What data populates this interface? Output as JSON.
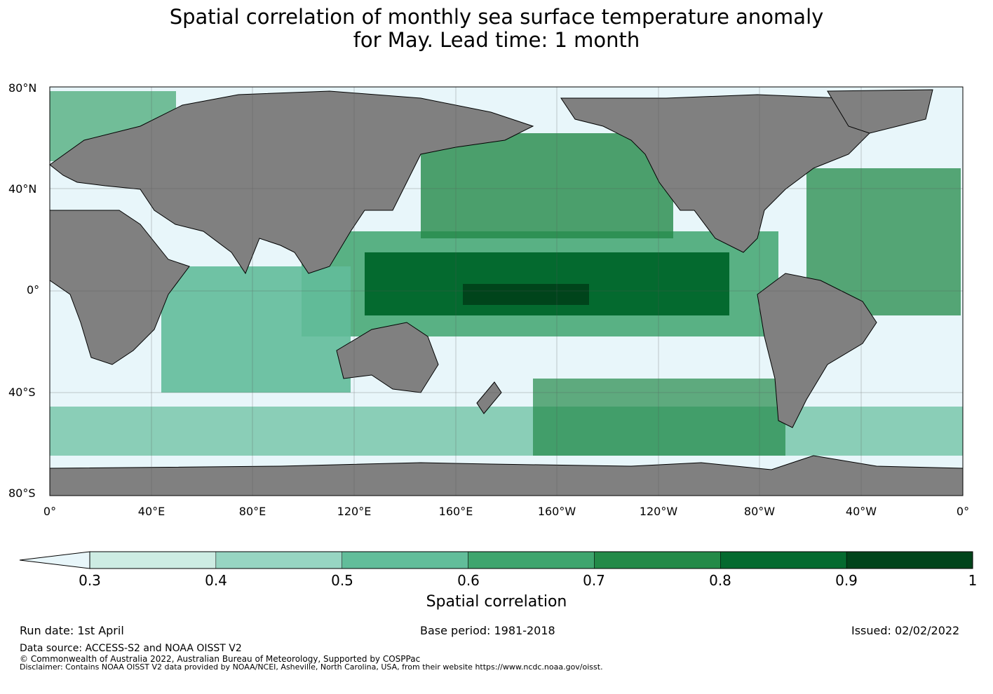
{
  "title_line1": "Spatial correlation of monthly sea surface temperature anomaly",
  "title_line2": "for May. Lead time: 1 month",
  "lat_labels": [
    "80°N",
    "40°N",
    "0°",
    "40°S",
    "80°S"
  ],
  "lon_labels": [
    "0°",
    "40°E",
    "80°E",
    "120°E",
    "160°E",
    "160°W",
    "120°W",
    "80°W",
    "40°W",
    "0°"
  ],
  "colorbar": {
    "label": "Spatial correlation",
    "ticks": [
      "0.3",
      "0.4",
      "0.5",
      "0.6",
      "0.7",
      "0.8",
      "0.9",
      "1"
    ],
    "colors": [
      "#e8f6fa",
      "#cdece3",
      "#97d5c2",
      "#62bd9a",
      "#3fa56e",
      "#238a48",
      "#046a2f",
      "#00441b"
    ]
  },
  "land_color": "#808080",
  "run_date": "Run date: 1st April",
  "base_period": "Base period: 1981-2018",
  "issued": "Issued: 02/02/2022",
  "data_source": "Data source: ACCESS-S2 and NOAA OISST V2",
  "copyright": "© Commonwealth of Australia 2022, Australian Bureau of Meteorology, Supported by COSPPac",
  "disclaimer": "Disclaimer: Contains NOAA OISST V2 data provided by NOAA/NCEI, Asheville, North Carolina, USA, from their website https://www.ncdc.noaa.gov/oisst."
}
